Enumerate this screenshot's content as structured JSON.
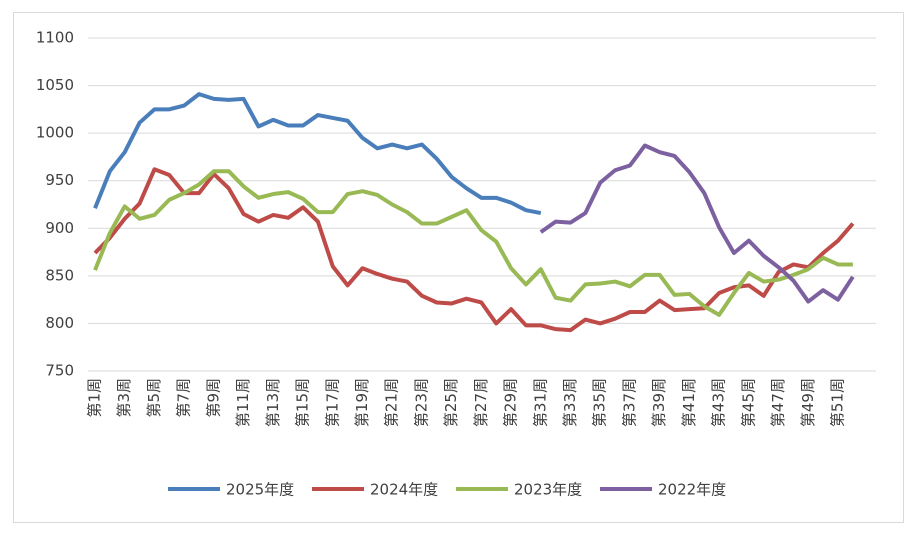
{
  "chart_data": {
    "type": "line",
    "categories": [
      "第1周",
      null,
      "第3周",
      null,
      "第5周",
      null,
      "第7周",
      null,
      "第9周",
      null,
      "第11周",
      null,
      "第13周",
      null,
      "第15周",
      null,
      "第17周",
      null,
      "第19周",
      null,
      "第21周",
      null,
      "第23周",
      null,
      "第25周",
      null,
      "第27周",
      null,
      "第29周",
      null,
      "第31周",
      null,
      "第33周",
      null,
      "第35周",
      null,
      "第37周",
      null,
      "第39周",
      null,
      "第41周",
      null,
      "第43周",
      null,
      "第45周",
      null,
      "第47周",
      null,
      "第49周",
      null,
      "第51周",
      null
    ],
    "series": [
      {
        "name": "2025年度",
        "color": "#4a7ebb",
        "values": [
          921,
          960,
          980,
          1011,
          1025,
          1025,
          1029,
          1041,
          1036,
          1035,
          1036,
          1007,
          1014,
          1008,
          1008,
          1019,
          1016,
          1013,
          995,
          984,
          988,
          984,
          988,
          973,
          954,
          942,
          932,
          932,
          927,
          919,
          916,
          null,
          null,
          null,
          null,
          null,
          null,
          null,
          null,
          null,
          null,
          null,
          null,
          null,
          null,
          null,
          null,
          null,
          null,
          null,
          null,
          null
        ]
      },
      {
        "name": "2024年度",
        "color": "#be4b48",
        "values": [
          874,
          890,
          910,
          926,
          962,
          956,
          937,
          937,
          957,
          942,
          915,
          907,
          914,
          911,
          922,
          907,
          860,
          840,
          858,
          852,
          847,
          844,
          829,
          822,
          821,
          826,
          822,
          800,
          815,
          798,
          798,
          794,
          793,
          804,
          800,
          805,
          812,
          812,
          824,
          814,
          815,
          816,
          832,
          838,
          840,
          829,
          854,
          862,
          859,
          874,
          887,
          905
        ]
      },
      {
        "name": "2023年度",
        "color": "#98b954",
        "values": [
          856,
          895,
          923,
          910,
          914,
          930,
          937,
          946,
          960,
          960,
          944,
          932,
          936,
          938,
          931,
          917,
          917,
          936,
          939,
          935,
          925,
          917,
          905,
          905,
          912,
          919,
          898,
          886,
          858,
          841,
          857,
          827,
          824,
          841,
          842,
          844,
          839,
          851,
          851,
          830,
          831,
          818,
          809,
          832,
          853,
          844,
          846,
          851,
          857,
          869,
          862,
          862
        ]
      },
      {
        "name": "2022年度",
        "color": "#7d60a0",
        "values": [
          null,
          null,
          null,
          null,
          null,
          null,
          null,
          null,
          null,
          null,
          null,
          null,
          null,
          null,
          null,
          null,
          null,
          null,
          null,
          null,
          null,
          null,
          null,
          null,
          null,
          null,
          null,
          null,
          null,
          null,
          896,
          907,
          906,
          916,
          948,
          961,
          966,
          987,
          980,
          976,
          959,
          937,
          901,
          874,
          887,
          871,
          859,
          845,
          823,
          835,
          825,
          849
        ]
      }
    ],
    "ylim": [
      750,
      1100
    ],
    "yticks": [
      750,
      800,
      850,
      900,
      950,
      1000,
      1050,
      1100
    ],
    "grid": true
  }
}
